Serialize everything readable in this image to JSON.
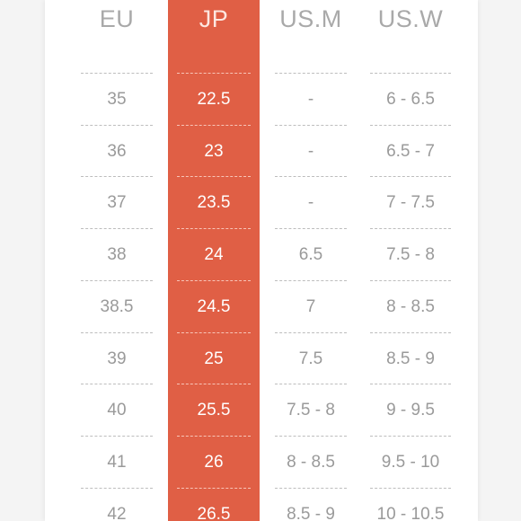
{
  "headers": {
    "eu": "EU",
    "jp": "JP",
    "usm": "US.M",
    "usw": "US.W"
  },
  "rows": [
    {
      "eu": "35",
      "jp": "22.5",
      "usm": "-",
      "usw": "6 - 6.5"
    },
    {
      "eu": "36",
      "jp": "23",
      "usm": "-",
      "usw": "6.5 - 7"
    },
    {
      "eu": "37",
      "jp": "23.5",
      "usm": "-",
      "usw": "7 - 7.5"
    },
    {
      "eu": "38",
      "jp": "24",
      "usm": "6.5",
      "usw": "7.5 - 8"
    },
    {
      "eu": "38.5",
      "jp": "24.5",
      "usm": "7",
      "usw": "8 - 8.5"
    },
    {
      "eu": "39",
      "jp": "25",
      "usm": "7.5",
      "usw": "8.5 - 9"
    },
    {
      "eu": "40",
      "jp": "25.5",
      "usm": "7.5 - 8",
      "usw": "9 - 9.5"
    },
    {
      "eu": "41",
      "jp": "26",
      "usm": "8 - 8.5",
      "usw": "9.5 - 10"
    },
    {
      "eu": "42",
      "jp": "26.5",
      "usm": "8.5 - 9",
      "usw": "10 - 10.5"
    }
  ],
  "colors": {
    "highlight": "#e05f45",
    "text": "#9a9a9a",
    "header_text": "#a9a9a9"
  }
}
